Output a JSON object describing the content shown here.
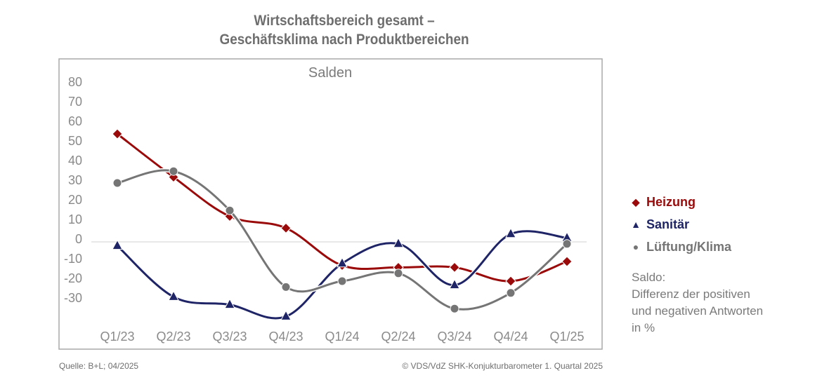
{
  "title": {
    "line1": "Wirtschaftsbereich gesamt –",
    "line2": "Geschäftsklima nach Produktbereichen"
  },
  "footer": {
    "source": "Quelle: B+L; 04/2025",
    "copyright": "© VDS/VdZ SHK-Konjukturbarometer 1. Quartal 2025"
  },
  "note": {
    "line1": "Saldo:",
    "line2": "Differenz der positiven",
    "line3": "und negativen Antworten",
    "line4": "in %"
  },
  "legend": [
    {
      "label": "Heizung",
      "marker": "◆",
      "color": "#9b0a0a"
    },
    {
      "label": "Sanitär",
      "marker": "▲",
      "color": "#1e2466"
    },
    {
      "label": "Lüftung/Klima",
      "marker": "●",
      "color": "#757575"
    }
  ],
  "chart_data": {
    "type": "line",
    "title": "Salden",
    "xlabel": "",
    "ylabel": "",
    "categories": [
      "Q1/23",
      "Q2/23",
      "Q3/23",
      "Q4/23",
      "Q1/24",
      "Q2/24",
      "Q3/24",
      "Q4/24",
      "Q1/25"
    ],
    "y_ticks": [
      80,
      70,
      60,
      50,
      40,
      30,
      20,
      10,
      0,
      -10,
      -20,
      -30
    ],
    "ylim": [
      -45,
      85
    ],
    "grid": false,
    "zero_line": true,
    "smooth": true,
    "legend_position": "right",
    "series": [
      {
        "name": "Heizung",
        "marker": "diamond",
        "color": "#9b0a0a",
        "values": [
          55,
          33,
          13,
          7,
          -12,
          -13,
          -13,
          -20,
          -10
        ]
      },
      {
        "name": "Sanitär",
        "marker": "triangle",
        "color": "#1e2466",
        "values": [
          -2,
          -28,
          -32,
          -38,
          -11,
          -1,
          -22,
          4,
          2
        ]
      },
      {
        "name": "Lüftung/Klima",
        "marker": "circle",
        "color": "#757575",
        "values": [
          30,
          36,
          16,
          -23,
          -20,
          -16,
          -34,
          -26,
          -1
        ]
      }
    ]
  }
}
